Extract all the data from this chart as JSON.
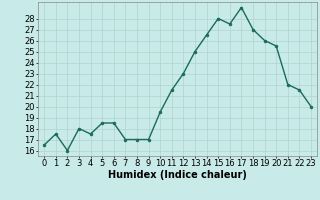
{
  "x": [
    0,
    1,
    2,
    3,
    4,
    5,
    6,
    7,
    8,
    9,
    10,
    11,
    12,
    13,
    14,
    15,
    16,
    17,
    18,
    19,
    20,
    21,
    22,
    23
  ],
  "y": [
    16.5,
    17.5,
    16.0,
    18.0,
    17.5,
    18.5,
    18.5,
    17.0,
    17.0,
    17.0,
    19.5,
    21.5,
    23.0,
    25.0,
    26.5,
    28.0,
    27.5,
    29.0,
    27.0,
    26.0,
    25.5,
    22.0,
    21.5,
    20.0
  ],
  "line_color": "#1a6b5a",
  "marker_color": "#1a6b5a",
  "bg_color": "#c8eae8",
  "grid_color": "#b0d4d0",
  "xlabel": "Humidex (Indice chaleur)",
  "ylim": [
    15.5,
    29.5
  ],
  "xlim": [
    -0.5,
    23.5
  ],
  "yticks": [
    16,
    17,
    18,
    19,
    20,
    21,
    22,
    23,
    24,
    25,
    26,
    27,
    28
  ],
  "xticks": [
    0,
    1,
    2,
    3,
    4,
    5,
    6,
    7,
    8,
    9,
    10,
    11,
    12,
    13,
    14,
    15,
    16,
    17,
    18,
    19,
    20,
    21,
    22,
    23
  ],
  "xlabel_fontsize": 7,
  "tick_fontsize": 6,
  "line_width": 1.0,
  "marker_size": 2.0
}
